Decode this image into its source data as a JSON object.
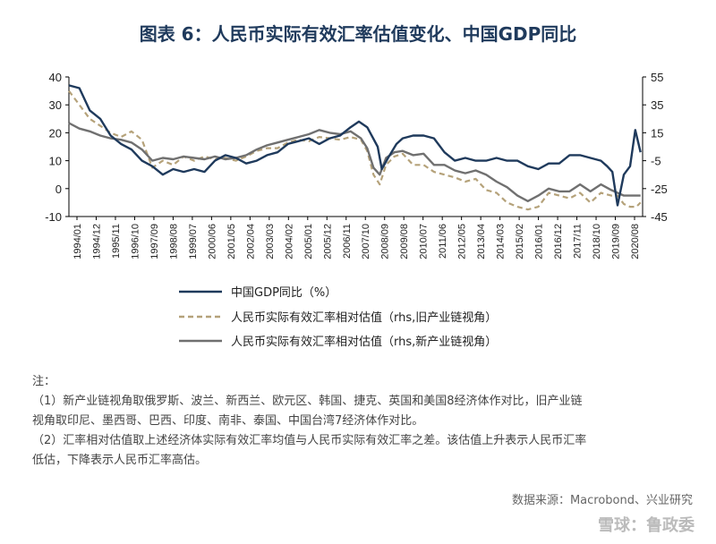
{
  "title": "图表 6：人民币实际有效汇率估值变化、中国GDP同比",
  "chart_data": {
    "type": "line",
    "title": "图表 6：人民币实际有效汇率估值变化、中国GDP同比",
    "y_left": {
      "min": -10,
      "max": 40,
      "ticks": [
        40,
        30,
        20,
        10,
        0,
        -10
      ]
    },
    "y_right": {
      "min": -45,
      "max": 55,
      "ticks": [
        55,
        35,
        15,
        -5,
        -25,
        -45
      ]
    },
    "x_range": [
      1994.0,
      2021.5
    ],
    "x_tick_labels": [
      "1994/01",
      "1994/12",
      "1995/11",
      "1996/10",
      "1997/09",
      "1998/08",
      "1999/07",
      "2000/06",
      "2001/05",
      "2002/04",
      "2003/03",
      "2004/02",
      "2005/01",
      "2005/12",
      "2006/11",
      "2007/10",
      "2008/09",
      "2009/08",
      "2010/07",
      "2011/06",
      "2012/05",
      "2013/04",
      "2014/03",
      "2015/02",
      "2016/01",
      "2016/12",
      "2017/11",
      "2018/10",
      "2019/09",
      "2020/08"
    ],
    "series": [
      {
        "name": "中国GDP同比（%）",
        "axis": "left",
        "color": "#1f3a5c",
        "style": "solid",
        "x": [
          1994.0,
          1994.5,
          1995.0,
          1995.5,
          1996.0,
          1996.5,
          1997.0,
          1997.5,
          1998.0,
          1998.5,
          1999.0,
          1999.5,
          2000.0,
          2000.5,
          2001.0,
          2001.5,
          2002.0,
          2002.5,
          2003.0,
          2003.5,
          2004.0,
          2004.5,
          2005.0,
          2005.5,
          2006.0,
          2006.5,
          2007.0,
          2007.5,
          2007.9,
          2008.3,
          2008.8,
          2009.0,
          2009.3,
          2009.7,
          2010.0,
          2010.5,
          2011.0,
          2011.5,
          2012.0,
          2012.5,
          2013.0,
          2013.5,
          2014.0,
          2014.5,
          2015.0,
          2015.5,
          2016.0,
          2016.5,
          2017.0,
          2017.5,
          2018.0,
          2018.5,
          2019.0,
          2019.5,
          2019.8,
          2020.05,
          2020.3,
          2020.6,
          2020.9,
          2021.15,
          2021.4
        ],
        "values": [
          37,
          36,
          28,
          25,
          19,
          16,
          14,
          10,
          8,
          5,
          7,
          6,
          7,
          6,
          10,
          12,
          11,
          9,
          10,
          12,
          13,
          16,
          17,
          18,
          16,
          18,
          19,
          22,
          24,
          22,
          15,
          7,
          11,
          16,
          18,
          19,
          19,
          18,
          13,
          10,
          11,
          10,
          10,
          11,
          10,
          10,
          8,
          7,
          9,
          9,
          12,
          12,
          11,
          10,
          8,
          6,
          -6,
          5,
          8,
          21,
          13
        ]
      },
      {
        "name": "人民币实际有效汇率相对估值（rhs,旧产业链视角）",
        "axis": "right",
        "color": "#b5a27a",
        "style": "dashed",
        "x": [
          1994.0,
          1994.5,
          1995.0,
          1995.5,
          1996.0,
          1996.5,
          1997.0,
          1997.5,
          1998.0,
          1998.5,
          1999.0,
          1999.5,
          2000.0,
          2000.5,
          2001.0,
          2001.5,
          2002.0,
          2002.5,
          2003.0,
          2003.5,
          2004.0,
          2004.5,
          2005.0,
          2005.5,
          2006.0,
          2006.5,
          2007.0,
          2007.5,
          2008.0,
          2008.3,
          2008.6,
          2008.9,
          2009.2,
          2009.6,
          2010.0,
          2010.5,
          2011.0,
          2011.5,
          2012.0,
          2012.5,
          2013.0,
          2013.5,
          2014.0,
          2014.5,
          2015.0,
          2015.5,
          2016.0,
          2016.5,
          2017.0,
          2017.5,
          2018.0,
          2018.5,
          2019.0,
          2019.5,
          2020.0,
          2020.3,
          2020.6,
          2020.9,
          2021.2,
          2021.4
        ],
        "values": [
          45,
          35,
          25,
          20,
          15,
          12,
          16,
          10,
          -10,
          -5,
          -8,
          -2,
          -5,
          -2,
          -4,
          -3,
          -5,
          -2,
          2,
          4,
          4,
          8,
          10,
          9,
          12,
          11,
          10,
          12,
          10,
          2,
          -15,
          -22,
          -8,
          -2,
          0,
          -8,
          -8,
          -13,
          -15,
          -17,
          -20,
          -18,
          -26,
          -28,
          -35,
          -38,
          -40,
          -38,
          -28,
          -30,
          -32,
          -28,
          -35,
          -28,
          -30,
          -30,
          -36,
          -38,
          -38,
          -35
        ]
      },
      {
        "name": "人民币实际有效汇率相对估值（rhs,新产业链视角）",
        "axis": "right",
        "color": "#707070",
        "style": "solid",
        "x": [
          1994.0,
          1994.5,
          1995.0,
          1995.5,
          1996.0,
          1996.5,
          1997.0,
          1997.5,
          1998.0,
          1998.5,
          1999.0,
          1999.5,
          2000.0,
          2000.5,
          2001.0,
          2001.5,
          2002.0,
          2002.5,
          2003.0,
          2003.5,
          2004.0,
          2004.5,
          2005.0,
          2005.5,
          2006.0,
          2006.5,
          2007.0,
          2007.5,
          2008.0,
          2008.3,
          2008.6,
          2008.9,
          2009.2,
          2009.6,
          2010.0,
          2010.5,
          2011.0,
          2011.5,
          2012.0,
          2012.5,
          2013.0,
          2013.5,
          2014.0,
          2014.5,
          2015.0,
          2015.5,
          2016.0,
          2016.5,
          2017.0,
          2017.5,
          2018.0,
          2018.5,
          2019.0,
          2019.5,
          2020.0,
          2020.3,
          2020.6,
          2020.9,
          2021.2,
          2021.4
        ],
        "values": [
          22,
          18,
          16,
          13,
          11,
          10,
          8,
          3,
          -5,
          -3,
          -4,
          -2,
          -3,
          -4,
          -2,
          -4,
          -3,
          -1,
          3,
          6,
          8,
          10,
          12,
          14,
          17,
          15,
          14,
          16,
          11,
          4,
          -10,
          -15,
          -3,
          1,
          2,
          -1,
          0,
          -8,
          -8,
          -12,
          -14,
          -12,
          -15,
          -20,
          -24,
          -30,
          -34,
          -30,
          -25,
          -27,
          -27,
          -22,
          -27,
          -22,
          -26,
          -28,
          -30,
          -30,
          -30,
          -30
        ]
      }
    ],
    "legend": [
      "中国GDP同比（%）",
      "人民币实际有效汇率相对估值（rhs,旧产业链视角）",
      "人民币实际有效汇率相对估值（rhs,新产业链视角）"
    ],
    "legend_position": "bottom-center"
  },
  "notes": {
    "heading": "注：",
    "line1": "（1）新产业链视角取俄罗斯、波兰、新西兰、欧元区、韩国、捷克、英国和美国8经济体作对比，旧产业链",
    "line2": "视角取印尼、墨西哥、巴西、印度、南非、泰国、中国台湾7经济体作对比。",
    "line3": "（2）汇率相对估值取上述经济体实际有效汇率均值与人民币实际有效汇率之差。该估值上升表示人民币汇率",
    "line4": "低估，下降表示人民币汇率高估。"
  },
  "source": "数据来源：Macrobond、兴业研究",
  "watermark": "雪球：鲁政委"
}
